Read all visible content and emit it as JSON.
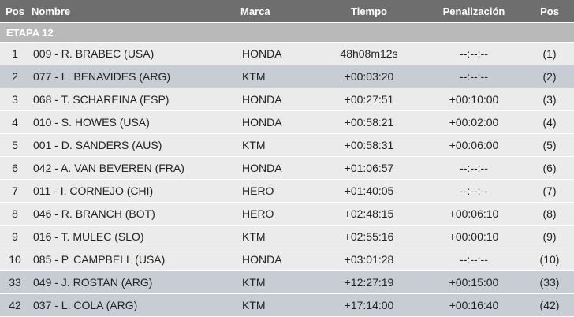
{
  "header": {
    "columns": [
      "Pos",
      "Nombre",
      "Marca",
      "Tiempo",
      "Penalización",
      "Pos"
    ]
  },
  "stage": "ETAPA 12",
  "rows": [
    [
      "1",
      "009 - R. BRABEC (USA)",
      "HONDA",
      "48h08m12s",
      "--:--:--",
      "(1)"
    ],
    [
      "2",
      "077 - L. BENAVIDES (ARG)",
      "KTM",
      "+00:03:20",
      "--:--:--",
      "(2)"
    ],
    [
      "3",
      "068 - T. SCHAREINA (ESP)",
      "HONDA",
      "+00:27:51",
      "+00:10:00",
      "(3)"
    ],
    [
      "4",
      "010 - S. HOWES (USA)",
      "HONDA",
      "+00:58:21",
      "+00:02:00",
      "(4)"
    ],
    [
      "5",
      "001 - D. SANDERS (AUS)",
      "KTM",
      "+00:58:31",
      "+00:06:00",
      "(5)"
    ],
    [
      "6",
      "042 - A. VAN BEVEREN (FRA)",
      "HONDA",
      "+01:06:57",
      "--:--:--",
      "(6)"
    ],
    [
      "7",
      "011 - I. CORNEJO (CHI)",
      "HERO",
      "+01:40:05",
      "--:--:--",
      "(7)"
    ],
    [
      "8",
      "046 - R. BRANCH (BOT)",
      "HERO",
      "+02:48:15",
      "+00:06:10",
      "(8)"
    ],
    [
      "9",
      "016 - T. MULEC (SLO)",
      "KTM",
      "+02:55:16",
      "+00:00:10",
      "(9)"
    ],
    [
      "10",
      "085 - P. CAMPBELL (USA)",
      "HONDA",
      "+03:01:28",
      "--:--:--",
      "(10)"
    ],
    [
      "33",
      "049 - J. ROSTAN (ARG)",
      "KTM",
      "+12:27:19",
      "+00:15:00",
      "(33)"
    ],
    [
      "42",
      "037 - L. COLA (ARG)",
      "KTM",
      "+17:14:00",
      "+00:16:40",
      "(42)"
    ]
  ]
}
